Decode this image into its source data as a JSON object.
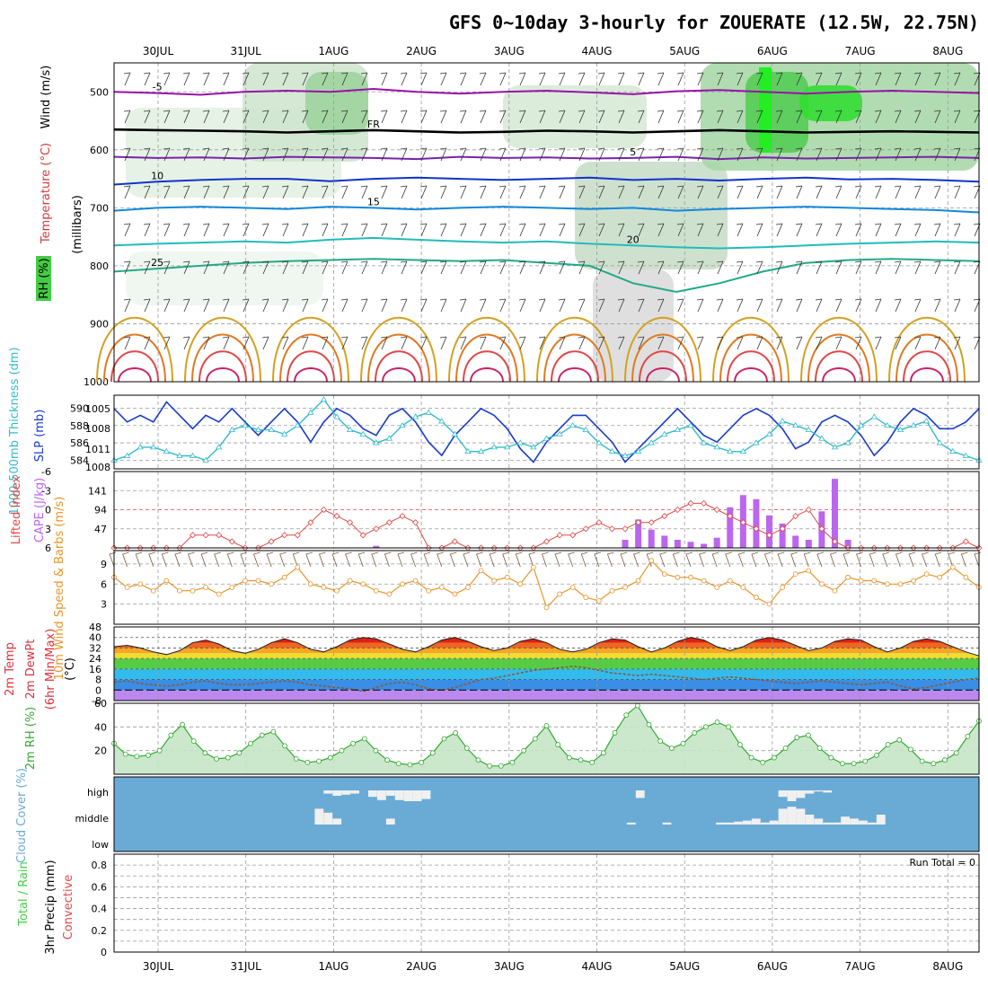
{
  "title": "GFS 0~10day 3-hourly for ZOUERATE (12.5W, 22.75N)",
  "dates": [
    "30JUL",
    "31JUL",
    "1AUG",
    "2AUG",
    "3AUG",
    "4AUG",
    "5AUG",
    "6AUG",
    "7AUG",
    "8AUG"
  ],
  "colors": {
    "grid": "#9a9a9a",
    "rh_green": "#44cc44",
    "temp_red": "#e0303a",
    "wind_brown": "#7a5a3a",
    "cape_purple": "#bb66ee",
    "lifted_red": "#e04848",
    "speed_orange": "#e8952a",
    "slp_blue": "#1a3ccc",
    "thick_cyan": "#33bbcc",
    "cloud_blue": "#6aabd6",
    "cloud_white": "#f0f0f0",
    "dewpt_brown": "#8a5a3a",
    "rh2m_green": "#33aa33"
  },
  "chart_data": [
    {
      "id": "upper_air",
      "type": "contour",
      "ylabel": "(millibars)",
      "side_labels": [
        "Wind (m/s)",
        "Temperature (°C)",
        "RH (%)"
      ],
      "yticks": [
        500,
        600,
        700,
        800,
        900,
        1000
      ],
      "ylim": [
        450,
        1000
      ],
      "temperature_contours": [
        {
          "value": -5,
          "label": "-5",
          "color": "#9911aa",
          "levels_mb": [
            500,
            502,
            505,
            500,
            498,
            500,
            495,
            500,
            503,
            500,
            498,
            501,
            504,
            499,
            497,
            500,
            503,
            500,
            498,
            500,
            502
          ]
        },
        {
          "value": "FR",
          "label": "FR",
          "color": "#000000",
          "levels_mb": [
            565,
            566,
            567,
            568,
            570,
            568,
            566,
            568,
            570,
            569,
            567,
            568,
            570,
            568,
            566,
            568,
            570,
            569,
            568,
            569,
            570
          ]
        },
        {
          "value": 5,
          "label": "5",
          "color": "#7a22aa",
          "levels_mb": [
            612,
            614,
            613,
            615,
            612,
            613,
            614,
            616,
            612,
            614,
            613,
            615,
            614,
            612,
            616,
            613,
            615,
            614,
            613,
            612,
            614
          ]
        },
        {
          "value": 10,
          "label": "10",
          "color": "#1133cc",
          "levels_mb": [
            660,
            655,
            652,
            650,
            650,
            654,
            650,
            648,
            650,
            652,
            650,
            648,
            652,
            650,
            653,
            650,
            648,
            651,
            650,
            652,
            655
          ]
        },
        {
          "value": 15,
          "label": "15",
          "color": "#1188dd",
          "levels_mb": [
            705,
            700,
            698,
            700,
            702,
            698,
            700,
            703,
            700,
            698,
            700,
            702,
            700,
            705,
            702,
            700,
            698,
            700,
            702,
            704,
            708
          ]
        },
        {
          "value": 20,
          "label": "20",
          "color": "#22bbbb",
          "levels_mb": [
            765,
            762,
            760,
            758,
            760,
            755,
            752,
            755,
            758,
            760,
            758,
            762,
            765,
            768,
            770,
            768,
            765,
            762,
            760,
            758,
            760
          ]
        },
        {
          "value": 25,
          "label": "25",
          "color": "#22aa88",
          "levels_mb": [
            810,
            805,
            800,
            795,
            792,
            790,
            788,
            790,
            792,
            790,
            795,
            800,
            830,
            845,
            830,
            810,
            795,
            790,
            788,
            790,
            792
          ]
        }
      ],
      "surface_contours_colors": [
        "#d4a020",
        "#e07a22",
        "#e04848",
        "#cc2266"
      ]
    },
    {
      "id": "slp_thickness",
      "type": "line",
      "ylabel_left": "1000-500mb Thickness (dm)",
      "ylabel_right": "SLP (mb)",
      "thickness_ticks": [
        584,
        586,
        588,
        590
      ],
      "slp_ticks": [
        1005,
        1008,
        1011
      ],
      "slp_extra_tick": "1008",
      "thickness_lim": [
        583,
        591.5
      ],
      "series": [
        {
          "key": "slp",
          "values": [
            1011,
            1009,
            1010,
            1009,
            1012,
            1010,
            1008,
            1010,
            1009,
            1011,
            1009,
            1007,
            1009,
            1011,
            1009,
            1006,
            1009,
            1011,
            1010,
            1008,
            1007,
            1010,
            1011,
            1009,
            1006,
            1004,
            1007,
            1009,
            1011,
            1010,
            1008,
            1005,
            1003,
            1006,
            1008,
            1010,
            1010,
            1008,
            1006,
            1003,
            1005,
            1007,
            1009,
            1011,
            1009,
            1007,
            1006,
            1008,
            1010,
            1011,
            1010,
            1008,
            1005,
            1006,
            1009,
            1010,
            1009,
            1007,
            1004,
            1006,
            1009,
            1011,
            1010,
            1008,
            1008,
            1009,
            1011
          ]
        },
        {
          "key": "thickness",
          "values": [
            584.0,
            584.5,
            585.5,
            585.5,
            585.0,
            584.5,
            584.5,
            584.0,
            585.5,
            587.5,
            588.0,
            587.5,
            587.5,
            587.0,
            588.0,
            589.5,
            591.0,
            589.0,
            587.5,
            587.0,
            586.0,
            586.5,
            588.0,
            589.0,
            589.5,
            588.5,
            587.0,
            585.0,
            585.0,
            585.5,
            585.5,
            586.0,
            585.5,
            586.5,
            587.0,
            588.0,
            587.5,
            586.0,
            585.0,
            584.5,
            585.0,
            586.0,
            587.0,
            587.5,
            588.0,
            586.0,
            585.5,
            585.0,
            585.0,
            586.0,
            587.0,
            588.5,
            588.0,
            587.5,
            586.5,
            585.5,
            586.0,
            588.0,
            589.0,
            588.0,
            587.5,
            588.0,
            588.5,
            586.0,
            585.0,
            584.5,
            584.0
          ]
        }
      ]
    },
    {
      "id": "cape_li",
      "type": "bar",
      "ylabel_left": "Lifted Index",
      "ylabel_right": "CAPE (J/kg)",
      "li_ticks": [
        -6,
        -3,
        0,
        3,
        6
      ],
      "cape_ticks": [
        47,
        94,
        141
      ],
      "cape_lim": [
        0,
        188
      ],
      "lifted_index": [
        7,
        7,
        7,
        7,
        7,
        6,
        4,
        4,
        4,
        5,
        6,
        6,
        5,
        4,
        4,
        2,
        0,
        1,
        2,
        4,
        3,
        2,
        1,
        2,
        7,
        6,
        5,
        7,
        7,
        7,
        7,
        7,
        6,
        5,
        4,
        4,
        3,
        2,
        3,
        3,
        2,
        2,
        1,
        0,
        -1,
        -1,
        0,
        1,
        2,
        3,
        4,
        3,
        1,
        0,
        3,
        5,
        6,
        7,
        7,
        7,
        7,
        7,
        7,
        7,
        6,
        5,
        7
      ],
      "cape": [
        0,
        0,
        0,
        0,
        0,
        0,
        0,
        0,
        0,
        0,
        0,
        0,
        0,
        0,
        0,
        0,
        0,
        0,
        0,
        0,
        5,
        0,
        0,
        0,
        0,
        0,
        0,
        0,
        0,
        0,
        0,
        0,
        0,
        0,
        0,
        0,
        0,
        0,
        0,
        20,
        70,
        45,
        30,
        20,
        15,
        10,
        25,
        100,
        130,
        120,
        80,
        60,
        30,
        20,
        90,
        170,
        20,
        0,
        0,
        0,
        0,
        0,
        0,
        0,
        0,
        0,
        0
      ]
    },
    {
      "id": "wind10m",
      "type": "line",
      "ylabel": "10m Wind Speed & Barbs (m/s)",
      "yticks": [
        3,
        6,
        9
      ],
      "ylim": [
        0,
        11
      ],
      "values": [
        7.0,
        5.5,
        6.0,
        5.0,
        6.5,
        5.0,
        5.0,
        5.5,
        4.5,
        5.5,
        6.5,
        6.5,
        6.0,
        7.0,
        8.5,
        6.0,
        5.5,
        5.0,
        6.5,
        6.0,
        5.0,
        4.5,
        6.0,
        6.5,
        5.0,
        5.5,
        4.5,
        5.5,
        8.0,
        6.5,
        7.0,
        6.0,
        8.5,
        2.5,
        4.5,
        5.5,
        4.0,
        3.5,
        5.0,
        5.5,
        6.5,
        9.5,
        7.5,
        7.0,
        7.0,
        6.5,
        5.5,
        6.5,
        5.5,
        4.0,
        3.0,
        5.5,
        7.5,
        8.0,
        6.0,
        5.0,
        7.0,
        6.5,
        6.5,
        6.0,
        6.0,
        6.5,
        7.5,
        7.0,
        8.5,
        7.0,
        5.5
      ]
    },
    {
      "id": "temp2m",
      "type": "area",
      "ylabel": "2m Temp 2m DewPt (6hr Min/Max) (°C)",
      "yticks": [
        -8,
        0,
        8,
        16,
        24,
        32,
        40,
        48
      ],
      "ylim": [
        -8,
        48
      ],
      "temperature": [
        33,
        34,
        32,
        29,
        27,
        30,
        36,
        38,
        35,
        30,
        28,
        31,
        36,
        39,
        36,
        31,
        29,
        33,
        38,
        40,
        39,
        35,
        31,
        29,
        33,
        38,
        40,
        37,
        33,
        30,
        32,
        37,
        39,
        36,
        31,
        29,
        31,
        36,
        39,
        38,
        33,
        29,
        32,
        37,
        40,
        38,
        33,
        30,
        33,
        38,
        40,
        38,
        34,
        30,
        32,
        37,
        39,
        38,
        33,
        29,
        32,
        37,
        39,
        37,
        33,
        29,
        26
      ],
      "dewpoint": [
        6,
        7,
        5,
        4,
        3,
        4,
        6,
        7,
        5,
        4,
        4,
        5,
        6,
        7,
        6,
        4,
        3,
        2,
        1,
        -1,
        2,
        5,
        6,
        4,
        1,
        0,
        2,
        5,
        8,
        9,
        11,
        13,
        15,
        16,
        17,
        18,
        17,
        15,
        13,
        12,
        11,
        12,
        11,
        10,
        9,
        8,
        9,
        10,
        9,
        8,
        7,
        6,
        5,
        6,
        7,
        6,
        5,
        4,
        5,
        6,
        3,
        1,
        2,
        4,
        6,
        8,
        9
      ]
    },
    {
      "id": "rh2m",
      "type": "area",
      "ylabel": "2m RH (%)",
      "yticks": [
        20,
        40,
        60
      ],
      "ylim": [
        0,
        60
      ],
      "values": [
        26,
        17,
        15,
        16,
        20,
        33,
        42,
        28,
        18,
        13,
        14,
        18,
        26,
        33,
        36,
        24,
        13,
        10,
        11,
        14,
        20,
        26,
        30,
        20,
        12,
        9,
        8,
        10,
        18,
        30,
        35,
        22,
        12,
        7,
        7,
        10,
        20,
        30,
        41,
        25,
        14,
        12,
        10,
        18,
        35,
        50,
        58,
        42,
        28,
        22,
        26,
        35,
        40,
        44,
        40,
        25,
        14,
        10,
        14,
        22,
        31,
        33,
        22,
        14,
        9,
        9,
        11,
        16,
        25,
        29,
        21,
        11,
        9,
        12,
        18,
        32,
        45
      ]
    },
    {
      "id": "cloud",
      "type": "heatmap",
      "ylabel": "Cloud Cover (%)",
      "levels": [
        "high",
        "middle",
        "low"
      ],
      "high": [
        0,
        0,
        0,
        0,
        0,
        0,
        0,
        0,
        0,
        0,
        0,
        0,
        0,
        0,
        0,
        0,
        0,
        0,
        0,
        0,
        0,
        0,
        0,
        0,
        0.3,
        0.5,
        0.4,
        0.3,
        0,
        0.6,
        0.9,
        0.5,
        0.9,
        1,
        1,
        0.8,
        0,
        0,
        0,
        0,
        0,
        0,
        0,
        0,
        0,
        0,
        0,
        0,
        0,
        0,
        0,
        0,
        0,
        0,
        0,
        0,
        0,
        0,
        0,
        0.7,
        0,
        0,
        0,
        0,
        0,
        0,
        0,
        0,
        0,
        0,
        0,
        0,
        0,
        0,
        0,
        0.6,
        1,
        0.7,
        0.3,
        0.1,
        0.2,
        0,
        0,
        0,
        0,
        0,
        0,
        0,
        0,
        0,
        0,
        0,
        0,
        0,
        0,
        0,
        0,
        0
      ],
      "middle": [
        0,
        0,
        0,
        0,
        0,
        0,
        0,
        0,
        0,
        0,
        0,
        0,
        0,
        0,
        0,
        0,
        0,
        0,
        0,
        0,
        0,
        0,
        0,
        0.8,
        0.6,
        0.3,
        0,
        0,
        0,
        0,
        0,
        0.3,
        0,
        0,
        0,
        0,
        0,
        0,
        0,
        0,
        0,
        0,
        0,
        0,
        0,
        0,
        0,
        0,
        0,
        0,
        0,
        0,
        0,
        0,
        0,
        0,
        0,
        0,
        0.1,
        0,
        0,
        0,
        0.1,
        0,
        0,
        0,
        0,
        0,
        0.1,
        0.1,
        0.15,
        0.2,
        0.3,
        0.1,
        0.2,
        0.8,
        0.9,
        0.8,
        0.5,
        0.3,
        0.1,
        0.1,
        0.4,
        0.3,
        0.2,
        0.1,
        0.5,
        0,
        0,
        0,
        0,
        0,
        0,
        0,
        0,
        0,
        0,
        0
      ]
    },
    {
      "id": "precip",
      "type": "bar",
      "ylabel": "3hr Precip (mm)",
      "side_labels": [
        "Total / Rain",
        "Convective"
      ],
      "yticks": [
        0,
        0.2,
        0.4,
        0.6,
        0.8
      ],
      "ylim": [
        0,
        0.9
      ],
      "run_total_label": "Run Total = 0",
      "values": []
    }
  ]
}
